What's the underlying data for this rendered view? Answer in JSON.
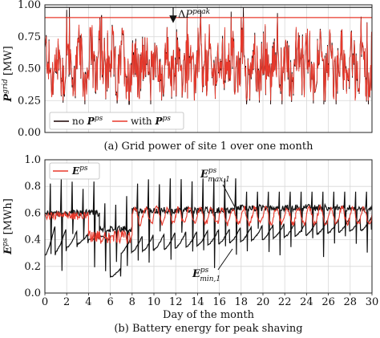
{
  "chart_data": [
    {
      "type": "line",
      "caption": "(a) Grid power of site 1 over one month",
      "ylabel": "P^grid [MW]",
      "xlim": [
        0,
        30
      ],
      "ylim": [
        0,
        1.0
      ],
      "yticks": [
        "0.00",
        "0.25",
        "0.50",
        "0.75",
        "1.00"
      ],
      "grid": true,
      "legend_position": "bottom-left",
      "reference_lines": {
        "original_peak": 0.98,
        "shaved_peak": 0.9
      },
      "annotation": "ΔP^peak",
      "series": [
        {
          "name": "no P^ps",
          "color": "#1a0000",
          "low": 0.22,
          "high": 0.98
        },
        {
          "name": "with P^ps",
          "color": "#e8392c",
          "low": 0.25,
          "high": 0.9
        }
      ]
    },
    {
      "type": "line",
      "caption": "(b) Battery energy for peak shaving",
      "ylabel": "E^ps [MWh]",
      "xlabel": "Day of the month",
      "xlim": [
        0,
        30
      ],
      "ylim": [
        0,
        1.0
      ],
      "xticks": [
        "0",
        "2",
        "4",
        "6",
        "8",
        "10",
        "12",
        "14",
        "16",
        "18",
        "20",
        "22",
        "24",
        "26",
        "28",
        "30"
      ],
      "yticks": [
        "0.0",
        "0.2",
        "0.4",
        "0.6",
        "0.8",
        "1.0"
      ],
      "grid": true,
      "legend_position": "top-left",
      "series": [
        {
          "name": "E^ps",
          "color": "#e8392c"
        },
        {
          "name": "E^ps_max,1",
          "color": "#111111"
        },
        {
          "name": "E^ps_min,1",
          "color": "#111111"
        }
      ],
      "annotations": [
        "E^ps_max,1",
        "E^ps_min,1"
      ]
    }
  ]
}
